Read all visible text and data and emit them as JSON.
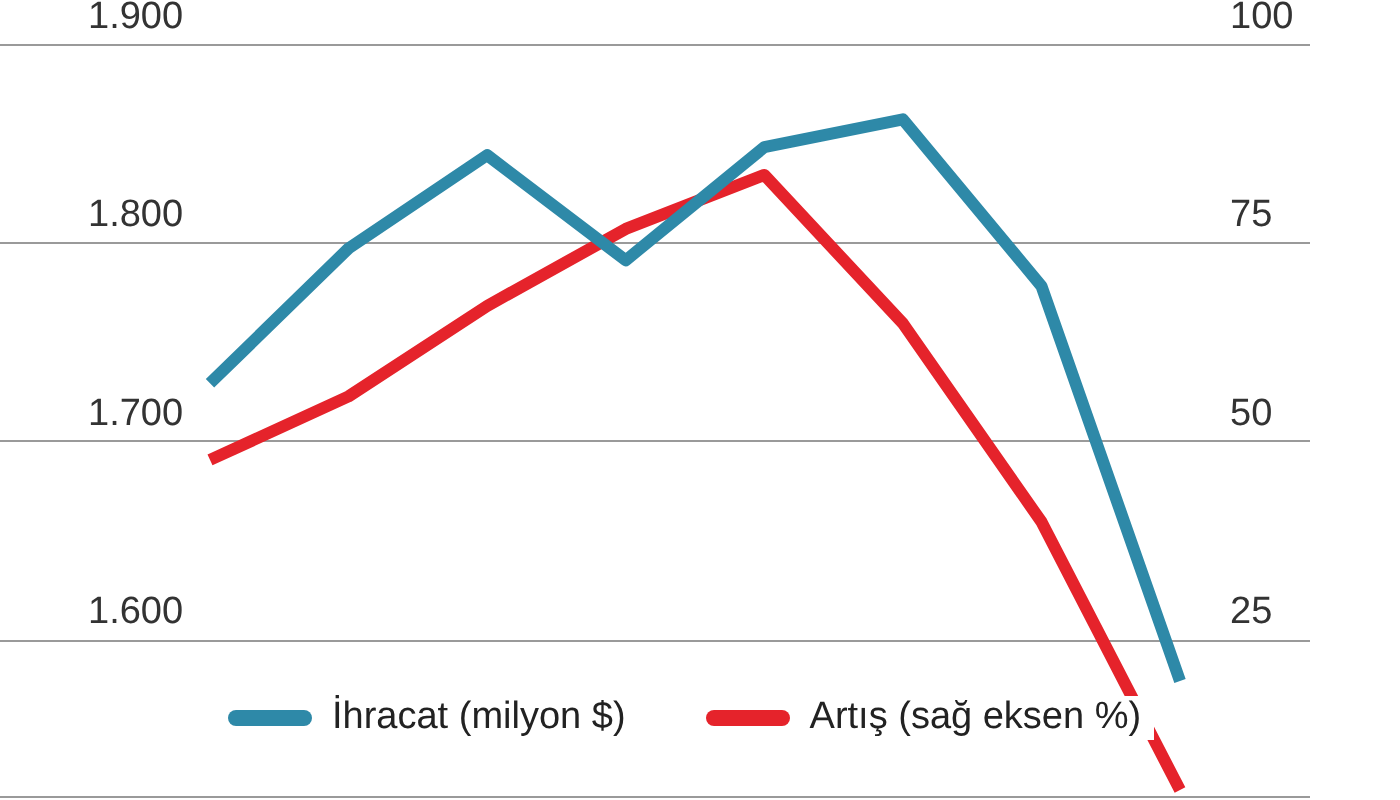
{
  "chart_data": {
    "type": "line",
    "categories": [
      null,
      null,
      null,
      null,
      null,
      null,
      null,
      null
    ],
    "series": [
      {
        "name": "İhracat (milyon $)",
        "color": "#2e89a8",
        "values": [
          1729,
          1797,
          1844,
          1791,
          1848,
          1862,
          1778,
          1579
        ]
      },
      {
        "name": "Artış (sağ eksen %)",
        "color": "#e5232b",
        "axis": "y2",
        "values": [
          47.6,
          55.6,
          67,
          76.7,
          83.5,
          64.8,
          39.8,
          6
        ]
      }
    ],
    "ylim": [
      1520,
      1900
    ],
    "yticks": [
      {
        "value": 1600,
        "label": "1.600"
      },
      {
        "value": 1700,
        "label": "1.700"
      },
      {
        "value": 1800,
        "label": "1.800"
      },
      {
        "value": 1900,
        "label": "1.900"
      }
    ],
    "y2lim": [
      5,
      100
    ],
    "y2ticks": [
      25,
      50,
      75,
      100
    ],
    "grid": "y",
    "legend": "bottom",
    "marker": "none",
    "line_style": "solid"
  }
}
